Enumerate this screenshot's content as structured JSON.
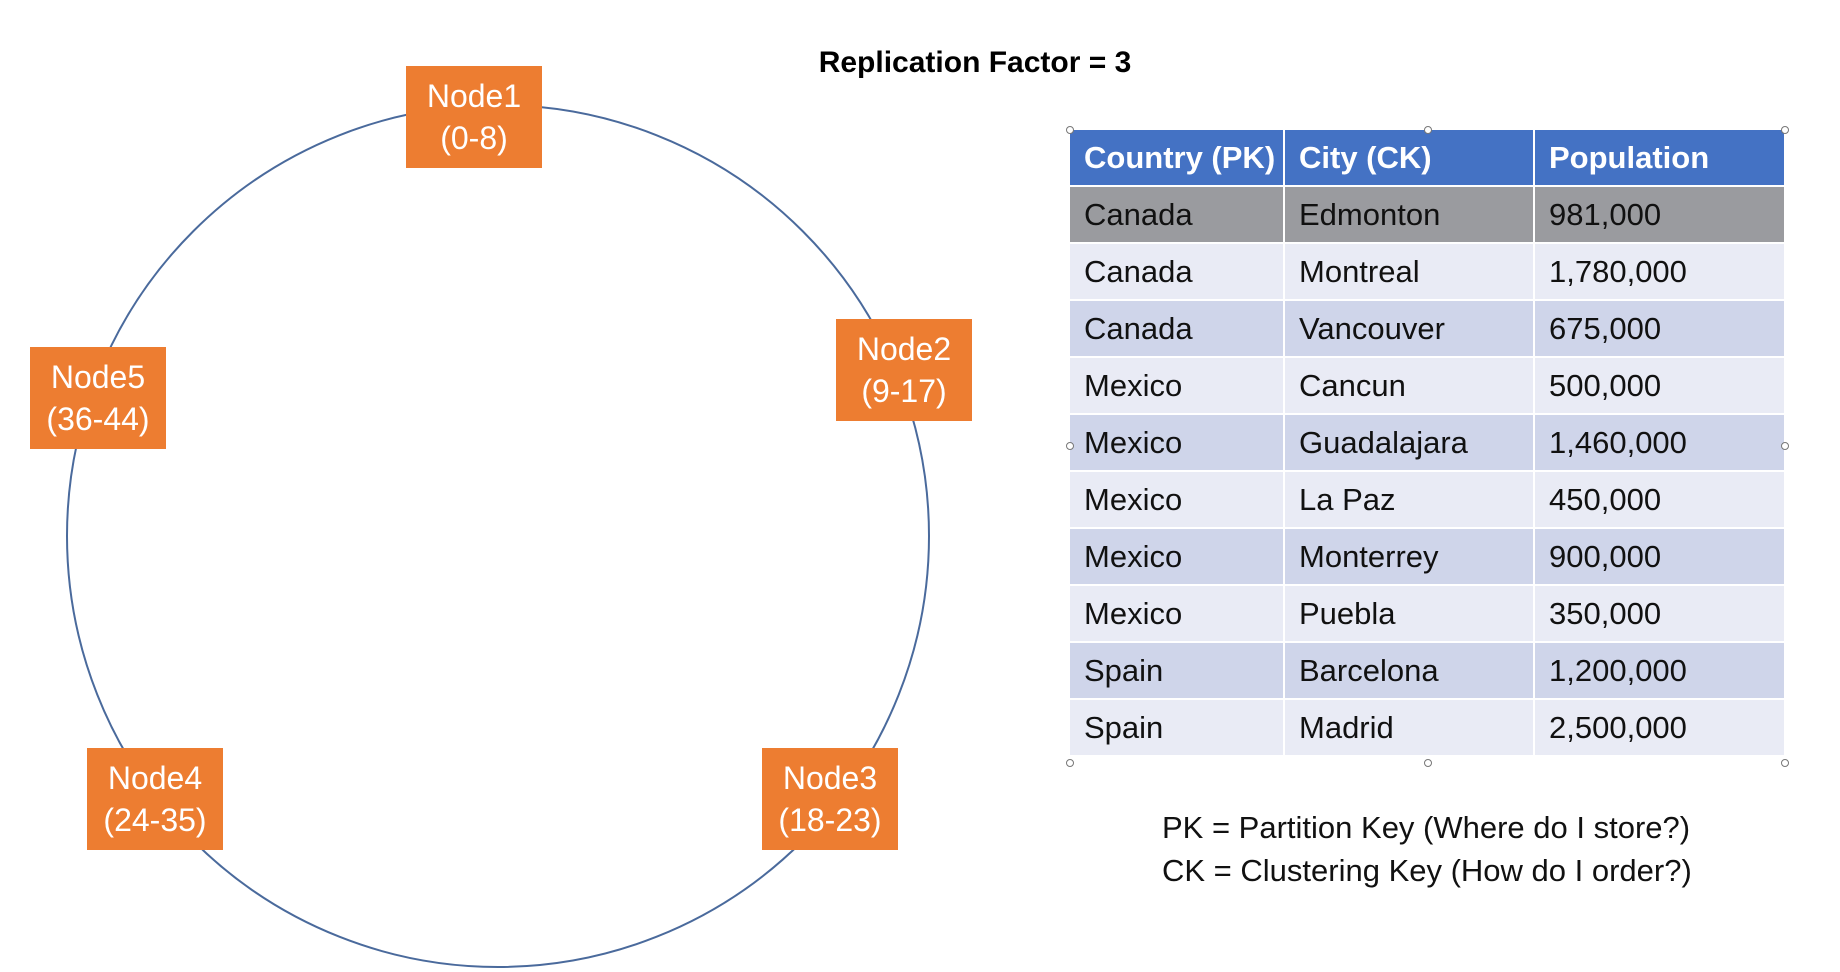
{
  "title": "Replication Factor = 3",
  "ring": {
    "nodes": [
      {
        "name": "Node1",
        "range": "(0-8)"
      },
      {
        "name": "Node2",
        "range": "(9-17)"
      },
      {
        "name": "Node3",
        "range": "(18-23)"
      },
      {
        "name": "Node4",
        "range": "(24-35)"
      },
      {
        "name": "Node5",
        "range": "(36-44)"
      }
    ],
    "colors": {
      "node_fill": "#ED7D31",
      "ring_stroke": "#4A6A9C"
    }
  },
  "table": {
    "headers": [
      "Country (PK)",
      "City (CK)",
      "Population"
    ],
    "rows": [
      [
        "Canada",
        "Edmonton",
        "981,000"
      ],
      [
        "Canada",
        "Montreal",
        "1,780,000"
      ],
      [
        "Canada",
        "Vancouver",
        "675,000"
      ],
      [
        "Mexico",
        "Cancun",
        "500,000"
      ],
      [
        "Mexico",
        "Guadalajara",
        "1,460,000"
      ],
      [
        "Mexico",
        "La Paz",
        "450,000"
      ],
      [
        "Mexico",
        "Monterrey",
        "900,000"
      ],
      [
        "Mexico",
        "Puebla",
        "350,000"
      ],
      [
        "Spain",
        "Barcelona",
        "1,200,000"
      ],
      [
        "Spain",
        "Madrid",
        "2,500,000"
      ]
    ],
    "selected_row": 0,
    "colors": {
      "header": "#4472C4",
      "band_dark": "#CFD5EA",
      "band_light": "#E9EBF5",
      "selected": "#9A9B9F"
    }
  },
  "legend": {
    "pk": "PK = Partition Key (Where do I store?)",
    "ck": "CK = Clustering Key (How do I order?)"
  }
}
